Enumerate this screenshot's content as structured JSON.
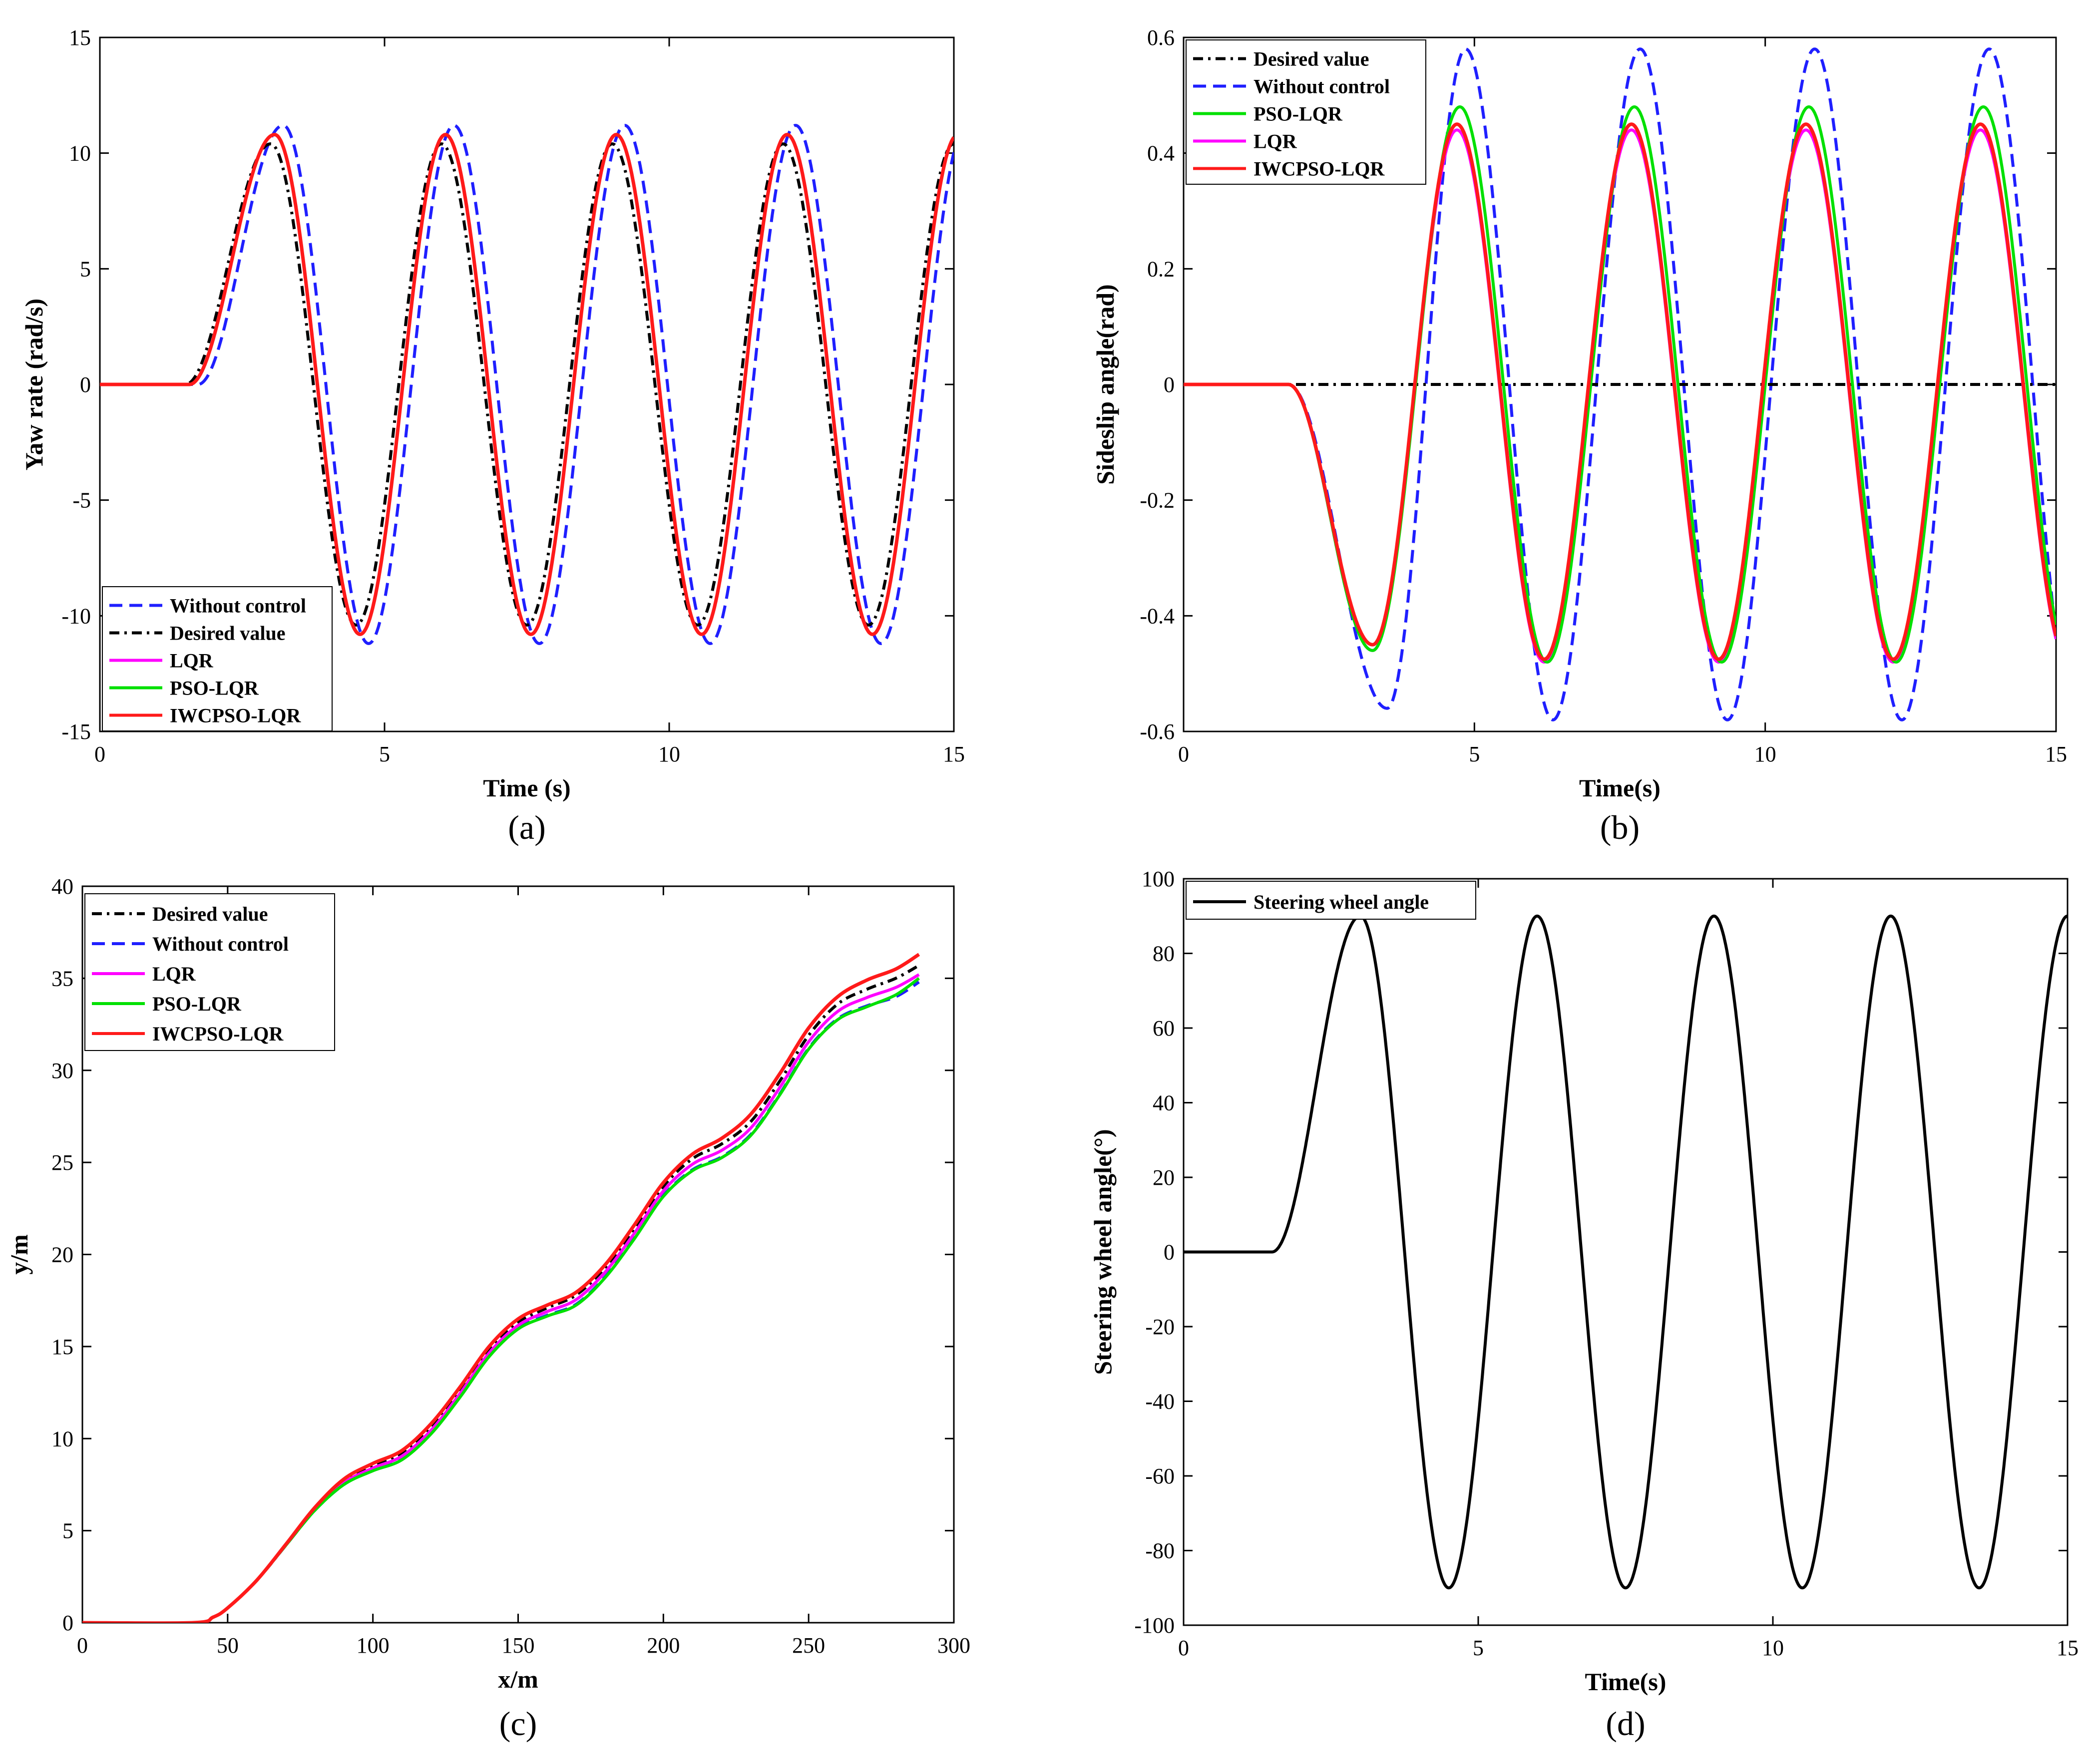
{
  "colors": {
    "without_control": "#1f1fff",
    "desired": "#000000",
    "lqr": "#ff00ff",
    "pso_lqr": "#00e000",
    "iwcpso_lqr": "#ff1a1a",
    "steering": "#000000"
  },
  "chart_data": [
    {
      "id": "a",
      "panel_label": "(a)",
      "type": "line",
      "xlabel": "Time (s)",
      "ylabel": "Yaw rate (rad/s)",
      "xlim": [
        0,
        15
      ],
      "ylim": [
        -15,
        15
      ],
      "xticks": [
        0,
        5,
        10,
        15
      ],
      "yticks": [
        -15,
        -10,
        -5,
        0,
        5,
        10,
        15
      ],
      "legend_position": "bottom-left",
      "series": [
        {
          "key": "without_control",
          "name": "Without control",
          "style": "dash",
          "model": {
            "t0": 1.6,
            "amp": 11.2,
            "phase": 0.22,
            "lag": 0.12
          }
        },
        {
          "key": "desired",
          "name": "Desired value",
          "style": "dashdot",
          "model": {
            "t0": 1.5,
            "amp": 10.4,
            "phase": -0.12,
            "lag": 0.0
          }
        },
        {
          "key": "lqr",
          "name": "LQR",
          "style": "solid",
          "model": {
            "t0": 1.55,
            "amp": 10.8,
            "phase": 0.0,
            "lag": 0.02
          }
        },
        {
          "key": "pso_lqr",
          "name": "PSO-LQR",
          "style": "solid",
          "model": {
            "t0": 1.55,
            "amp": 10.8,
            "phase": 0.0,
            "lag": 0.02
          }
        },
        {
          "key": "iwcpso_lqr",
          "name": "IWCPSO-LQR",
          "style": "solid",
          "model": {
            "t0": 1.55,
            "amp": 10.8,
            "phase": 0.0,
            "lag": 0.02
          }
        }
      ]
    },
    {
      "id": "b",
      "panel_label": "(b)",
      "type": "line",
      "xlabel": "Time(s)",
      "ylabel": "Sideslip angle(rad)",
      "xlim": [
        0,
        15
      ],
      "ylim": [
        -0.6,
        0.6
      ],
      "xticks": [
        0,
        5,
        10,
        15
      ],
      "yticks": [
        -0.6,
        -0.4,
        -0.2,
        0,
        0.2,
        0.4,
        0.6
      ],
      "legend_position": "top-left",
      "series": [
        {
          "key": "desired",
          "name": "Desired value",
          "style": "dashdot",
          "model": {
            "type": "zero"
          }
        },
        {
          "key": "without_control",
          "name": "Without control",
          "style": "dash",
          "model": {
            "t0": 1.8,
            "first_min": -0.56,
            "first_min_t": 3.5,
            "peak": 0.58,
            "trough": -0.58,
            "peaks_t": [
              4.85,
              7.85,
              10.85,
              13.85
            ]
          }
        },
        {
          "key": "pso_lqr",
          "name": "PSO-LQR",
          "style": "solid",
          "model": {
            "t0": 1.8,
            "first_min": -0.46,
            "first_min_t": 3.25,
            "peak": 0.48,
            "trough": -0.48,
            "peaks_t": [
              4.75,
              7.75,
              10.75,
              13.75
            ]
          }
        },
        {
          "key": "lqr",
          "name": "LQR",
          "style": "solid",
          "model": {
            "t0": 1.8,
            "first_min": -0.46,
            "first_min_t": 3.25,
            "peak": 0.44,
            "trough": -0.48,
            "peaks_t": [
              4.7,
              7.7,
              10.7,
              13.7
            ]
          }
        },
        {
          "key": "iwcpso_lqr",
          "name": "IWCPSO-LQR",
          "style": "solid",
          "model": {
            "t0": 1.8,
            "first_min": -0.45,
            "first_min_t": 3.25,
            "peak": 0.45,
            "trough": -0.475,
            "peaks_t": [
              4.7,
              7.7,
              10.7,
              13.7
            ]
          }
        }
      ]
    },
    {
      "id": "c",
      "panel_label": "(c)",
      "type": "line",
      "xlabel": "x/m",
      "ylabel": "y/m",
      "xlim": [
        0,
        300
      ],
      "ylim": [
        0,
        40
      ],
      "xticks": [
        0,
        50,
        100,
        150,
        200,
        250,
        300
      ],
      "yticks": [
        0,
        5,
        10,
        15,
        20,
        25,
        30,
        35,
        40
      ],
      "legend_position": "top-left",
      "series": [
        {
          "key": "desired",
          "name": "Desired value",
          "style": "dashdot",
          "points": [
            [
              0,
              0
            ],
            [
              38,
              0
            ],
            [
              45,
              0.3
            ],
            [
              50,
              0.8
            ],
            [
              60,
              2.3
            ],
            [
              70,
              4.2
            ],
            [
              80,
              6.2
            ],
            [
              90,
              7.7
            ],
            [
              100,
              8.5
            ],
            [
              110,
              9.2
            ],
            [
              120,
              10.6
            ],
            [
              130,
              12.6
            ],
            [
              140,
              14.8
            ],
            [
              150,
              16.3
            ],
            [
              160,
              17.1
            ],
            [
              170,
              17.8
            ],
            [
              180,
              19.3
            ],
            [
              190,
              21.4
            ],
            [
              200,
              23.7
            ],
            [
              210,
              25.2
            ],
            [
              220,
              26.0
            ],
            [
              230,
              27.2
            ],
            [
              240,
              29.4
            ],
            [
              250,
              31.9
            ],
            [
              260,
              33.6
            ],
            [
              270,
              34.4
            ],
            [
              280,
              35.0
            ],
            [
              288,
              35.7
            ]
          ]
        },
        {
          "key": "without_control",
          "name": "Without control",
          "style": "dash",
          "points": [
            [
              0,
              0
            ],
            [
              38,
              0
            ],
            [
              45,
              0.3
            ],
            [
              50,
              0.8
            ],
            [
              60,
              2.3
            ],
            [
              70,
              4.2
            ],
            [
              80,
              6.1
            ],
            [
              90,
              7.5
            ],
            [
              100,
              8.3
            ],
            [
              110,
              8.9
            ],
            [
              120,
              10.3
            ],
            [
              130,
              12.3
            ],
            [
              140,
              14.5
            ],
            [
              150,
              16.0
            ],
            [
              160,
              16.7
            ],
            [
              170,
              17.3
            ],
            [
              180,
              18.8
            ],
            [
              190,
              20.9
            ],
            [
              200,
              23.2
            ],
            [
              210,
              24.6
            ],
            [
              220,
              25.3
            ],
            [
              230,
              26.5
            ],
            [
              240,
              28.7
            ],
            [
              250,
              31.2
            ],
            [
              260,
              32.8
            ],
            [
              270,
              33.5
            ],
            [
              280,
              34.0
            ],
            [
              288,
              34.8
            ]
          ]
        },
        {
          "key": "lqr",
          "name": "LQR",
          "style": "solid",
          "points": [
            [
              0,
              0
            ],
            [
              38,
              0
            ],
            [
              45,
              0.3
            ],
            [
              50,
              0.8
            ],
            [
              60,
              2.3
            ],
            [
              70,
              4.2
            ],
            [
              80,
              6.15
            ],
            [
              90,
              7.6
            ],
            [
              100,
              8.4
            ],
            [
              110,
              9.05
            ],
            [
              120,
              10.45
            ],
            [
              130,
              12.45
            ],
            [
              140,
              14.65
            ],
            [
              150,
              16.15
            ],
            [
              160,
              16.9
            ],
            [
              170,
              17.55
            ],
            [
              180,
              19.05
            ],
            [
              190,
              21.15
            ],
            [
              200,
              23.45
            ],
            [
              210,
              24.9
            ],
            [
              220,
              25.65
            ],
            [
              230,
              26.85
            ],
            [
              240,
              29.05
            ],
            [
              250,
              31.55
            ],
            [
              260,
              33.2
            ],
            [
              270,
              33.95
            ],
            [
              280,
              34.5
            ],
            [
              288,
              35.2
            ]
          ]
        },
        {
          "key": "pso_lqr",
          "name": "PSO-LQR",
          "style": "solid",
          "points": [
            [
              0,
              0
            ],
            [
              38,
              0
            ],
            [
              45,
              0.3
            ],
            [
              50,
              0.8
            ],
            [
              60,
              2.3
            ],
            [
              70,
              4.2
            ],
            [
              80,
              6.1
            ],
            [
              90,
              7.5
            ],
            [
              100,
              8.25
            ],
            [
              110,
              8.85
            ],
            [
              120,
              10.25
            ],
            [
              130,
              12.25
            ],
            [
              140,
              14.45
            ],
            [
              150,
              15.95
            ],
            [
              160,
              16.65
            ],
            [
              170,
              17.25
            ],
            [
              180,
              18.75
            ],
            [
              190,
              20.85
            ],
            [
              200,
              23.15
            ],
            [
              210,
              24.55
            ],
            [
              220,
              25.25
            ],
            [
              230,
              26.45
            ],
            [
              240,
              28.65
            ],
            [
              250,
              31.15
            ],
            [
              260,
              32.75
            ],
            [
              270,
              33.45
            ],
            [
              280,
              34.1
            ],
            [
              288,
              35.0
            ]
          ]
        },
        {
          "key": "iwcpso_lqr",
          "name": "IWCPSO-LQR",
          "style": "solid",
          "points": [
            [
              0,
              0
            ],
            [
              38,
              0
            ],
            [
              45,
              0.3
            ],
            [
              50,
              0.8
            ],
            [
              60,
              2.3
            ],
            [
              70,
              4.25
            ],
            [
              80,
              6.25
            ],
            [
              90,
              7.8
            ],
            [
              100,
              8.65
            ],
            [
              110,
              9.35
            ],
            [
              120,
              10.8
            ],
            [
              130,
              12.8
            ],
            [
              140,
              15.0
            ],
            [
              150,
              16.5
            ],
            [
              160,
              17.25
            ],
            [
              170,
              17.95
            ],
            [
              180,
              19.45
            ],
            [
              190,
              21.6
            ],
            [
              200,
              23.9
            ],
            [
              210,
              25.45
            ],
            [
              220,
              26.3
            ],
            [
              230,
              27.6
            ],
            [
              240,
              29.8
            ],
            [
              250,
              32.3
            ],
            [
              260,
              34.0
            ],
            [
              270,
              34.9
            ],
            [
              280,
              35.5
            ],
            [
              288,
              36.3
            ]
          ]
        }
      ]
    },
    {
      "id": "d",
      "panel_label": "(d)",
      "type": "line",
      "xlabel": "Time(s)",
      "ylabel": "Steering wheel angle(°)",
      "xlim": [
        0,
        15
      ],
      "ylim": [
        -100,
        100
      ],
      "xticks": [
        0,
        5,
        10,
        15
      ],
      "yticks": [
        -100,
        -80,
        -60,
        -40,
        -20,
        0,
        20,
        40,
        60,
        80,
        100
      ],
      "legend_position": "top-left",
      "series": [
        {
          "key": "steering",
          "name": "Steering wheel angle",
          "style": "solid",
          "model": {
            "t0": 1.5,
            "amp": 90,
            "period": 3.0
          }
        }
      ]
    }
  ]
}
